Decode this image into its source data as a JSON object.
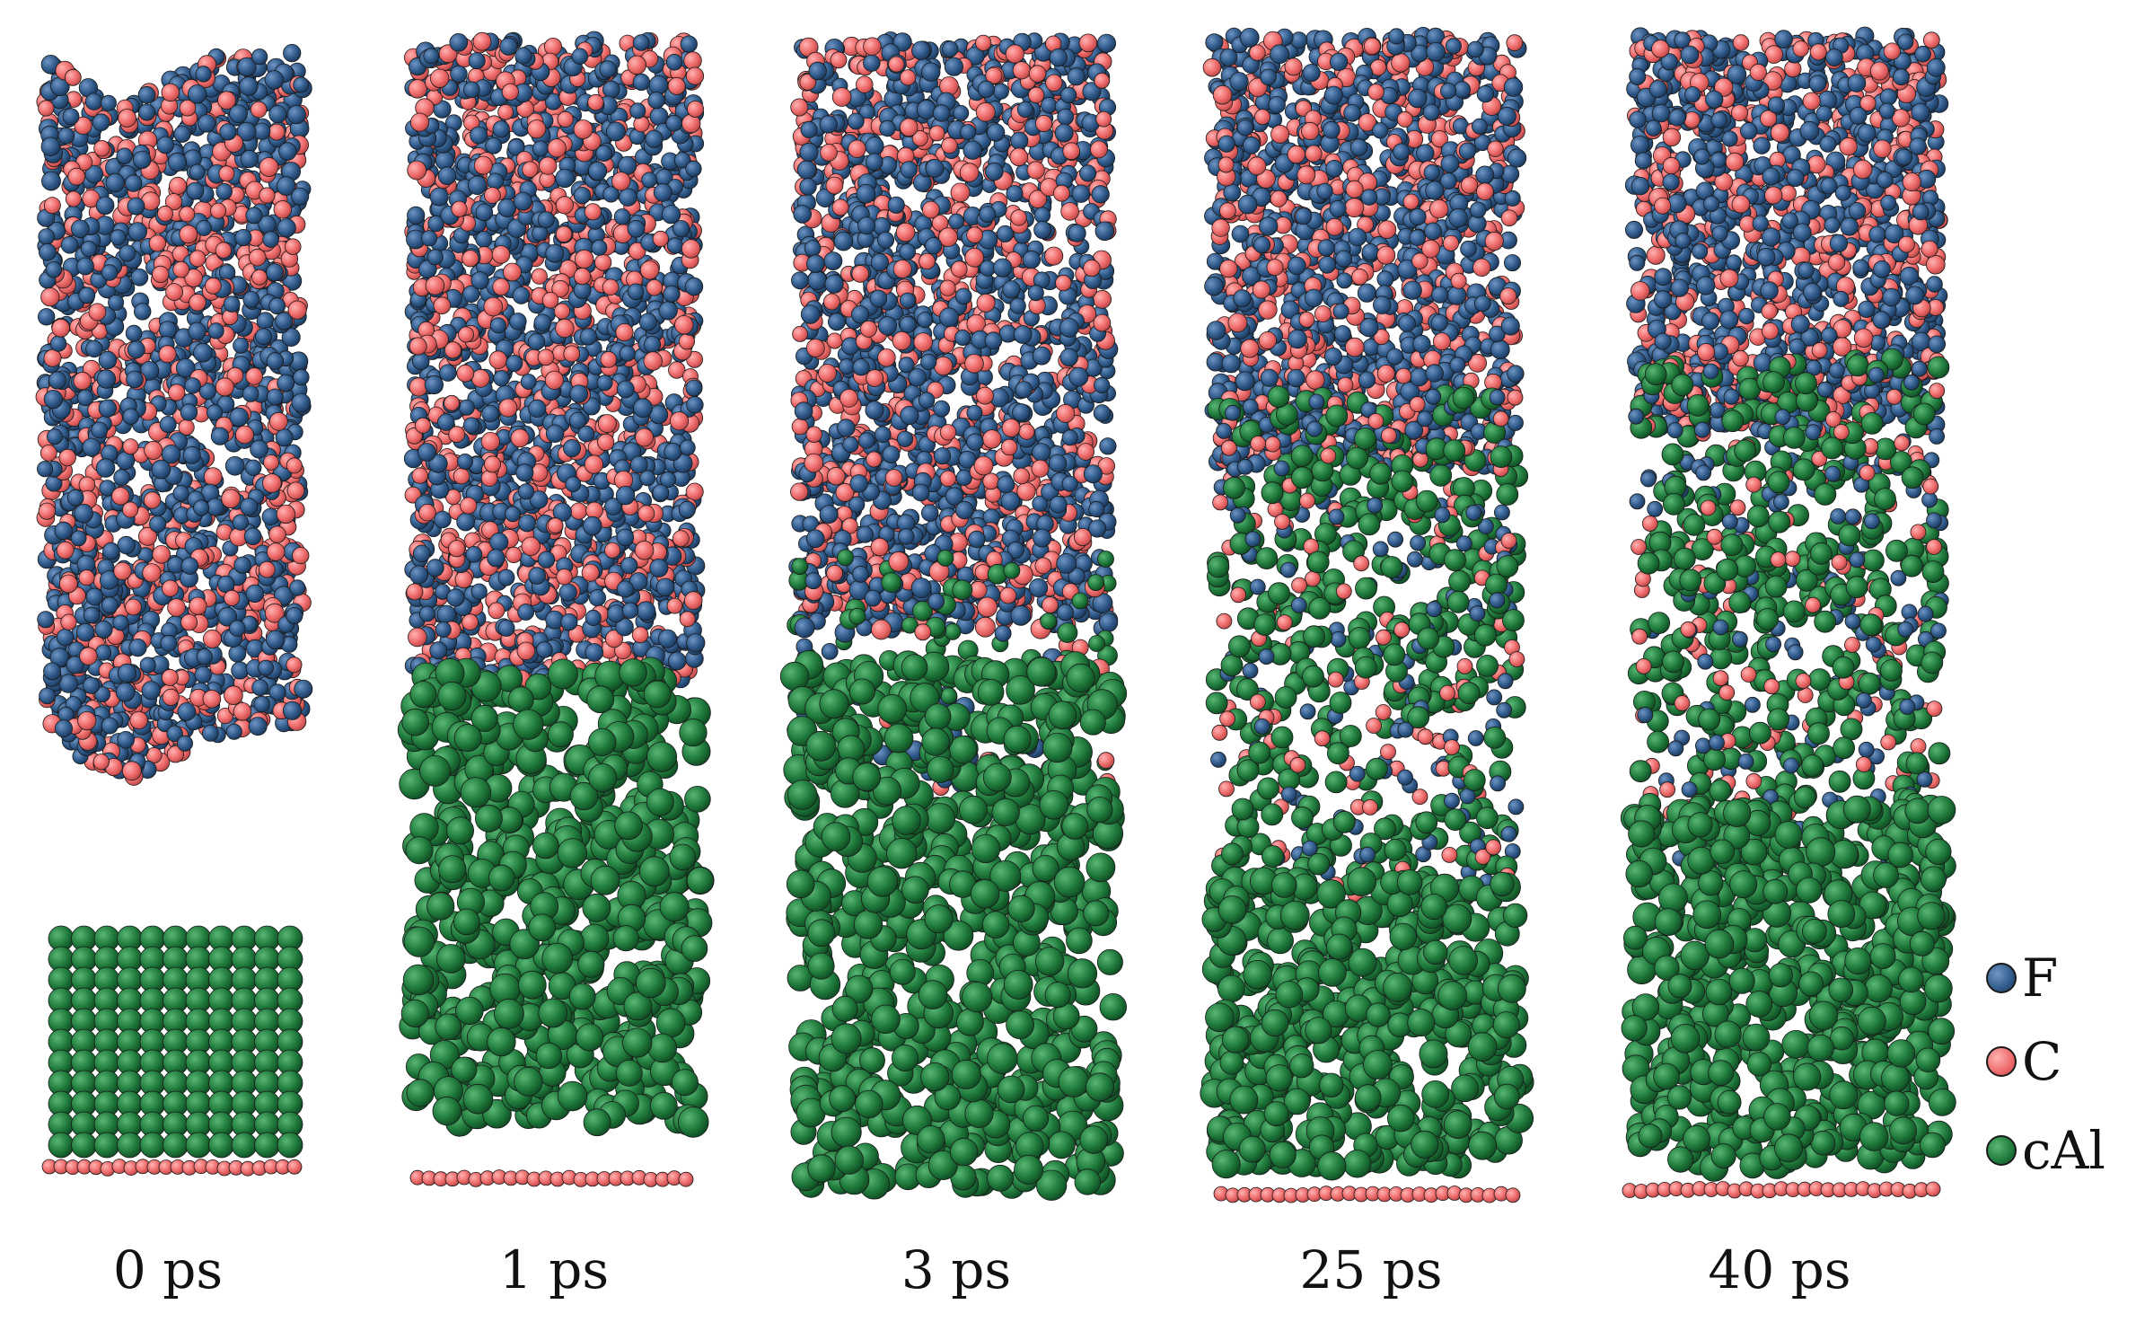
{
  "snapshots": [
    {
      "id": "0ps",
      "label": "0 ps",
      "state": "separated",
      "top_shape": "notched"
    },
    {
      "id": "1ps",
      "label": "1 ps",
      "state": "contact",
      "top_shape": "flat"
    },
    {
      "id": "3ps",
      "label": "3 ps",
      "state": "mixing",
      "top_shape": "flat"
    },
    {
      "id": "25ps",
      "label": "25 ps",
      "state": "mixed",
      "top_shape": "flat"
    },
    {
      "id": "40ps",
      "label": "40 ps",
      "state": "mixed",
      "top_shape": "flat"
    }
  ],
  "legend": [
    {
      "label": "F",
      "color": "#2f5a8a"
    },
    {
      "label": "C",
      "color": "#ee6a6a"
    },
    {
      "label": "cAl",
      "color": "#1f7a3c"
    }
  ],
  "colors": {
    "F": "#2f5a8a",
    "C": "#ee6a6a",
    "Al": "#1f7a3c",
    "outline": "#1a1a1a"
  }
}
